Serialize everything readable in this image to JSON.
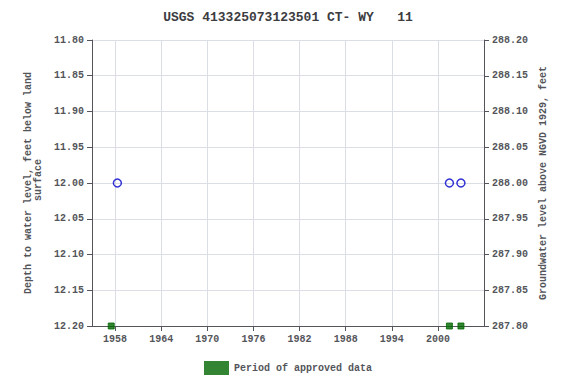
{
  "chart_data": {
    "type": "scatter",
    "title": "USGS 413325073123501 CT- WY   11",
    "ylabel": "Depth to water level, feet below land\n surface",
    "y2label": "Groundwater level above NGVD 1929, feet",
    "xlim": [
      1955,
      2006
    ],
    "xticks": [
      1958,
      1964,
      1970,
      1976,
      1982,
      1988,
      1994,
      2000
    ],
    "ylim": [
      12.2,
      11.8
    ],
    "yticks": [
      {
        "value": 11.8,
        "label": "11.80"
      },
      {
        "value": 11.85,
        "label": "11.85"
      },
      {
        "value": 11.9,
        "label": "11.90"
      },
      {
        "value": 11.95,
        "label": "11.95"
      },
      {
        "value": 12.0,
        "label": "12.00"
      },
      {
        "value": 12.05,
        "label": "12.05"
      },
      {
        "value": 12.1,
        "label": "12.10"
      },
      {
        "value": 12.15,
        "label": "12.15"
      },
      {
        "value": 12.2,
        "label": "12.20"
      }
    ],
    "y2lim": [
      287.8,
      288.2
    ],
    "y2ticks": [
      {
        "value": 288.2,
        "label": "288.20"
      },
      {
        "value": 288.15,
        "label": "288.15"
      },
      {
        "value": 288.1,
        "label": "288.10"
      },
      {
        "value": 288.05,
        "label": "288.05"
      },
      {
        "value": 288.0,
        "label": "288.00"
      },
      {
        "value": 287.95,
        "label": "287.95"
      },
      {
        "value": 287.9,
        "label": "287.90"
      },
      {
        "value": 287.85,
        "label": "287.85"
      },
      {
        "value": 287.8,
        "label": "287.80"
      }
    ],
    "grid": true,
    "legend": "bottom",
    "series": [
      {
        "x": [
          1958.3,
          2001.5,
          2003.0
        ],
        "values": [
          12.0,
          12.0,
          12.0
        ],
        "color": "#0000cc",
        "marker": "open_circle"
      },
      {
        "name": "Period of approved data",
        "x": [
          1957.5,
          2001.5,
          2003.0
        ],
        "values": [
          12.2,
          12.2,
          12.2
        ],
        "color": "#006600",
        "marker": "square"
      }
    ]
  }
}
